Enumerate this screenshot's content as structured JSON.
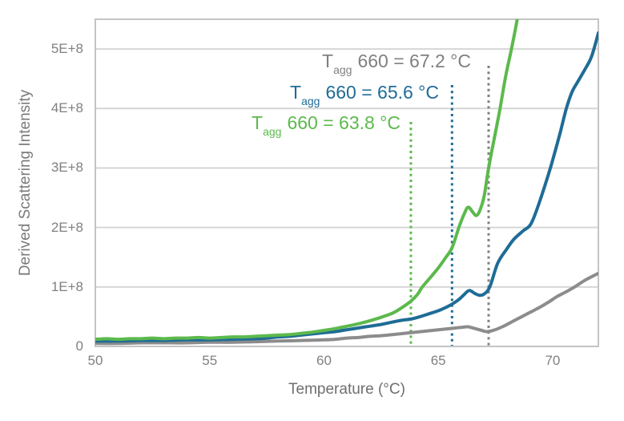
{
  "page": {
    "background": "#FFFFFF"
  },
  "y_axis": {
    "title": "Derived Scattering Intensity",
    "tick_labels": [
      "0",
      "1E+8",
      "2E+8",
      "3E+8",
      "4E+8",
      "5E+8"
    ],
    "tick_values": [
      0,
      1,
      2,
      3,
      4,
      5
    ],
    "min": 0,
    "max": 5.5,
    "value_unit": "1e8",
    "label_color": "#808080"
  },
  "x_axis": {
    "title": "Temperature (°C)",
    "tick_labels": [
      "50",
      "55",
      "60",
      "65",
      "70"
    ],
    "tick_values": [
      50,
      55,
      60,
      65,
      70
    ],
    "min": 50,
    "max": 72,
    "label_color": "#808080"
  },
  "annotations": [
    {
      "prefix": "T",
      "subscript": "agg",
      "text": "660 = 67.2 °C",
      "temperature_c": 67.2,
      "color": "#808080"
    },
    {
      "prefix": "T",
      "subscript": "agg",
      "text": "660 = 65.6 °C",
      "temperature_c": 65.6,
      "color": "#1F6C96"
    },
    {
      "prefix": "T",
      "subscript": "agg",
      "text": "660 = 63.8 °C",
      "temperature_c": 63.8,
      "color": "#5CB94C"
    }
  ],
  "style": {
    "gridline_color": "#D6D6D6",
    "border_color": "#C4C4C4",
    "curve_width": 4,
    "dotted_width": 3
  },
  "chart_data": {
    "type": "line",
    "title": "",
    "xlabel": "Temperature (°C)",
    "ylabel": "Derived Scattering Intensity",
    "xlim": [
      50,
      72
    ],
    "ylim": [
      0,
      5.5
    ],
    "value_unit": "1e8",
    "grid": "horizontal",
    "legend": "none",
    "series": [
      {
        "name": "series-gray",
        "tagg_660_c": 67.2,
        "color": "#8C8C8C",
        "points": [
          [
            50,
            0.05
          ],
          [
            51,
            0.05
          ],
          [
            52,
            0.06
          ],
          [
            53,
            0.06
          ],
          [
            54,
            0.06
          ],
          [
            55,
            0.07
          ],
          [
            56,
            0.07
          ],
          [
            57,
            0.08
          ],
          [
            58,
            0.09
          ],
          [
            59,
            0.1
          ],
          [
            60,
            0.11
          ],
          [
            60.5,
            0.12
          ],
          [
            61,
            0.14
          ],
          [
            61.5,
            0.15
          ],
          [
            62,
            0.17
          ],
          [
            62.5,
            0.18
          ],
          [
            63,
            0.2
          ],
          [
            63.5,
            0.22
          ],
          [
            64,
            0.24
          ],
          [
            64.5,
            0.26
          ],
          [
            65,
            0.28
          ],
          [
            65.5,
            0.3
          ],
          [
            66,
            0.32
          ],
          [
            66.3,
            0.33
          ],
          [
            66.6,
            0.3
          ],
          [
            66.9,
            0.27
          ],
          [
            67.1,
            0.25
          ],
          [
            67.4,
            0.27
          ],
          [
            67.8,
            0.33
          ],
          [
            68.2,
            0.41
          ],
          [
            68.6,
            0.49
          ],
          [
            69,
            0.57
          ],
          [
            69.4,
            0.65
          ],
          [
            69.8,
            0.74
          ],
          [
            70.2,
            0.84
          ],
          [
            70.6,
            0.92
          ],
          [
            71,
            1.01
          ],
          [
            71.4,
            1.11
          ],
          [
            71.7,
            1.17
          ],
          [
            72,
            1.23
          ]
        ]
      },
      {
        "name": "series-blue",
        "tagg_660_c": 65.6,
        "color": "#1F6C96",
        "points": [
          [
            50,
            0.09
          ],
          [
            51,
            0.09
          ],
          [
            52,
            0.1
          ],
          [
            53,
            0.1
          ],
          [
            54,
            0.11
          ],
          [
            55,
            0.11
          ],
          [
            56,
            0.12
          ],
          [
            57,
            0.13
          ],
          [
            57.5,
            0.14
          ],
          [
            58,
            0.16
          ],
          [
            58.5,
            0.17
          ],
          [
            59,
            0.19
          ],
          [
            59.5,
            0.21
          ],
          [
            60,
            0.23
          ],
          [
            60.5,
            0.25
          ],
          [
            61,
            0.28
          ],
          [
            61.5,
            0.31
          ],
          [
            62,
            0.34
          ],
          [
            62.5,
            0.37
          ],
          [
            63,
            0.41
          ],
          [
            63.4,
            0.44
          ],
          [
            63.8,
            0.46
          ],
          [
            64.2,
            0.5
          ],
          [
            64.6,
            0.55
          ],
          [
            65,
            0.6
          ],
          [
            65.3,
            0.65
          ],
          [
            65.6,
            0.71
          ],
          [
            65.9,
            0.79
          ],
          [
            66.1,
            0.86
          ],
          [
            66.35,
            0.94
          ],
          [
            66.6,
            0.89
          ],
          [
            66.8,
            0.86
          ],
          [
            67,
            0.88
          ],
          [
            67.25,
            1.0
          ],
          [
            67.6,
            1.4
          ],
          [
            68,
            1.64
          ],
          [
            68.3,
            1.8
          ],
          [
            68.7,
            1.94
          ],
          [
            69.05,
            2.06
          ],
          [
            69.4,
            2.4
          ],
          [
            69.9,
            3.0
          ],
          [
            70.3,
            3.55
          ],
          [
            70.6,
            4.0
          ],
          [
            70.85,
            4.28
          ],
          [
            71.1,
            4.45
          ],
          [
            71.4,
            4.65
          ],
          [
            71.7,
            4.87
          ],
          [
            72,
            5.27
          ]
        ]
      },
      {
        "name": "series-green",
        "tagg_660_c": 63.8,
        "color": "#5CB94C",
        "points": [
          [
            50,
            0.12
          ],
          [
            50.5,
            0.13
          ],
          [
            51,
            0.12
          ],
          [
            51.5,
            0.13
          ],
          [
            52,
            0.13
          ],
          [
            52.5,
            0.14
          ],
          [
            53,
            0.13
          ],
          [
            53.5,
            0.14
          ],
          [
            54,
            0.14
          ],
          [
            54.5,
            0.15
          ],
          [
            55,
            0.14
          ],
          [
            55.5,
            0.15
          ],
          [
            56,
            0.16
          ],
          [
            56.5,
            0.16
          ],
          [
            57,
            0.17
          ],
          [
            57.5,
            0.18
          ],
          [
            58,
            0.19
          ],
          [
            58.5,
            0.2
          ],
          [
            59,
            0.22
          ],
          [
            59.5,
            0.24
          ],
          [
            60,
            0.27
          ],
          [
            60.5,
            0.3
          ],
          [
            61,
            0.34
          ],
          [
            61.5,
            0.38
          ],
          [
            62,
            0.43
          ],
          [
            62.5,
            0.49
          ],
          [
            63,
            0.56
          ],
          [
            63.4,
            0.65
          ],
          [
            63.8,
            0.76
          ],
          [
            64.1,
            0.88
          ],
          [
            64.3,
            1.0
          ],
          [
            64.7,
            1.18
          ],
          [
            65,
            1.32
          ],
          [
            65.3,
            1.48
          ],
          [
            65.6,
            1.66
          ],
          [
            65.9,
            2.0
          ],
          [
            66.1,
            2.2
          ],
          [
            66.3,
            2.34
          ],
          [
            66.5,
            2.26
          ],
          [
            66.65,
            2.2
          ],
          [
            66.8,
            2.27
          ],
          [
            67,
            2.52
          ],
          [
            67.2,
            3.0
          ],
          [
            67.45,
            3.5
          ],
          [
            67.7,
            4.0
          ],
          [
            67.95,
            4.55
          ],
          [
            68.2,
            5.0
          ],
          [
            68.45,
            5.5
          ],
          [
            68.55,
            5.8
          ]
        ]
      }
    ]
  }
}
